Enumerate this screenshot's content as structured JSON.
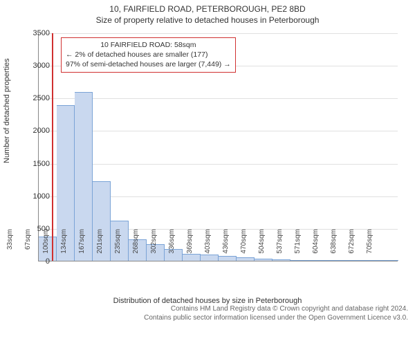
{
  "title_line1": "10, FAIRFIELD ROAD, PETERBOROUGH, PE2 8BD",
  "title_line2": "Size of property relative to detached houses in Peterborough",
  "ylabel": "Number of detached properties",
  "xlabel": "Distribution of detached houses by size in Peterborough",
  "footer_line1": "Contains HM Land Registry data © Crown copyright and database right 2024.",
  "footer_line2": "Contains public sector information licensed under the Open Government Licence v3.0.",
  "chart": {
    "type": "histogram",
    "ylim": [
      0,
      3500
    ],
    "ytick_step": 500,
    "bar_color": "#c9d8ef",
    "bar_border": "#7aa3d6",
    "grid_color": "#e0e0e0",
    "marker_color": "#d03030",
    "marker_x_sqm": 58,
    "x_bin_start": 33,
    "x_bin_width": 33.5,
    "x_ticks_sqm": [
      33,
      67,
      100,
      134,
      167,
      201,
      235,
      268,
      302,
      336,
      369,
      403,
      436,
      470,
      504,
      537,
      571,
      604,
      638,
      672,
      705
    ],
    "values": [
      370,
      2390,
      2590,
      1220,
      620,
      330,
      260,
      180,
      110,
      95,
      70,
      55,
      30,
      20,
      12,
      8,
      6,
      4,
      3,
      2
    ],
    "annotation": {
      "line1": "10 FAIRFIELD ROAD: 58sqm",
      "line2": "← 2% of detached houses are smaller (177)",
      "line3": "97% of semi-detached houses are larger (7,449) →"
    },
    "title_fontsize": 12,
    "label_fontsize": 11,
    "tick_fontsize": 10
  }
}
